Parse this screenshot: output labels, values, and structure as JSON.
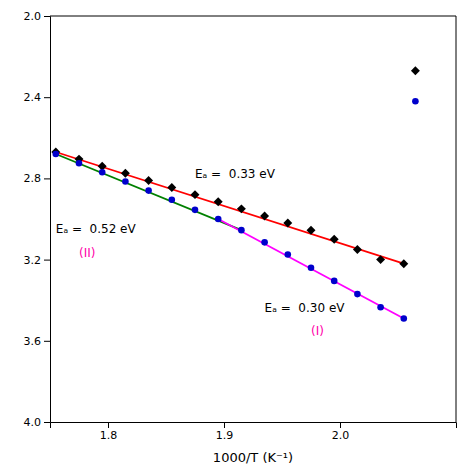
{
  "chart_data": {
    "type": "scatter",
    "xlabel": "1000/T (K⁻¹)",
    "xlim": [
      1.75,
      2.1
    ],
    "ylim": [
      4.0,
      2.0
    ],
    "xticks": [
      1.8,
      1.9,
      {
        "value": 2.0,
        "label": "2.0"
      }
    ],
    "yticks": [
      {
        "value": 2.0,
        "label": "2.0"
      },
      2.4,
      2.8,
      3.2,
      3.6,
      {
        "value": 4.0,
        "label": "4.0"
      }
    ],
    "grid": false,
    "series": [
      {
        "type": "scatter",
        "marker": "diamond",
        "color": "#000000",
        "x": [
          1.755,
          1.775,
          1.795,
          1.815,
          1.835,
          1.855,
          1.875,
          1.895,
          1.915,
          1.935,
          1.955,
          1.975,
          1.995,
          2.015,
          2.035,
          2.055
        ],
        "values": [
          2.67,
          2.705,
          2.74,
          2.775,
          2.81,
          2.845,
          2.88,
          2.915,
          2.95,
          2.985,
          3.02,
          3.055,
          3.1,
          3.15,
          3.2,
          3.22
        ]
      },
      {
        "type": "scatter",
        "marker": "circle",
        "color": "#0000cc",
        "x": [
          1.755,
          1.775,
          1.795,
          1.815,
          1.835,
          1.855,
          1.875,
          1.895,
          1.915,
          1.935,
          1.955,
          1.975,
          1.995,
          2.015,
          2.035,
          2.055
        ],
        "values": [
          2.68,
          2.725,
          2.77,
          2.815,
          2.86,
          2.905,
          2.955,
          3.0,
          3.055,
          3.115,
          3.175,
          3.24,
          3.305,
          3.37,
          3.435,
          3.49
        ]
      },
      {
        "type": "scatter",
        "marker": "diamond",
        "color": "#000000",
        "x": [
          2.065
        ],
        "values": [
          2.27
        ]
      },
      {
        "type": "scatter",
        "marker": "circle",
        "color": "#0000cc",
        "x": [
          2.065
        ],
        "values": [
          2.42
        ]
      },
      {
        "type": "line",
        "color": "#ff0000",
        "x": [
          1.755,
          2.055
        ],
        "values": [
          2.67,
          3.22
        ]
      },
      {
        "type": "line",
        "color": "#008000",
        "x": [
          1.755,
          1.915
        ],
        "values": [
          2.68,
          3.055
        ]
      },
      {
        "type": "line",
        "color": "#ff00ff",
        "x": [
          1.895,
          2.055
        ],
        "values": [
          3.0,
          3.49
        ]
      }
    ],
    "annotations": [
      {
        "text": "Eₐ =  0.33 eV",
        "x": 1.875,
        "y": 2.78,
        "color": "#000000"
      },
      {
        "text": "Eₐ =  0.52 eV",
        "x": 1.755,
        "y": 3.05,
        "color": "#000000"
      },
      {
        "text": "(II)",
        "x": 1.775,
        "y": 3.17,
        "color": "#ff00aa"
      },
      {
        "text": "Eₐ =  0.30 eV",
        "x": 1.935,
        "y": 3.44,
        "color": "#000000"
      },
      {
        "text": "(I)",
        "x": 1.975,
        "y": 3.555,
        "color": "#ff00aa"
      }
    ]
  }
}
